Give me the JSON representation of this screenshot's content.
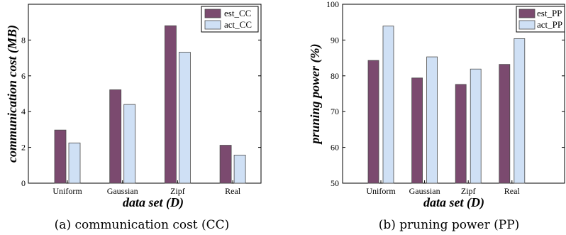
{
  "chart_data": [
    {
      "type": "bar",
      "categories": [
        "Uniform",
        "Gaussian",
        "Zipf",
        "Real"
      ],
      "series": [
        {
          "name": "est_CC",
          "values": [
            2.97,
            5.22,
            8.8,
            2.12
          ]
        },
        {
          "name": "act_CC",
          "values": [
            2.25,
            4.4,
            7.32,
            1.57
          ]
        }
      ],
      "xlabel": "data set (D)",
      "ylabel": "communication cost (MB)",
      "ylim": [
        0,
        10
      ],
      "yticks": [
        0,
        2,
        4,
        6,
        8
      ],
      "legend_position": "top-right",
      "grid": false,
      "caption": "(a) communication cost (CC)"
    },
    {
      "type": "bar",
      "categories": [
        "Uniform",
        "Gaussian",
        "Zipf",
        "Real"
      ],
      "series": [
        {
          "name": "est_PP",
          "values": [
            84.3,
            79.4,
            77.6,
            83.2
          ]
        },
        {
          "name": "act_PP",
          "values": [
            93.9,
            85.3,
            81.9,
            90.4
          ]
        }
      ],
      "xlabel": "data set (D)",
      "ylabel": "pruning power (%)",
      "ylim": [
        50,
        100
      ],
      "yticks": [
        50,
        60,
        70,
        80,
        90,
        100
      ],
      "legend_position": "top-right",
      "grid": false,
      "caption": "(b) pruning power (PP)"
    }
  ],
  "colors": {
    "series_est": "#7b4a6f",
    "series_act": "#cfe0f5",
    "bar_stroke": "#4a4a4a"
  }
}
